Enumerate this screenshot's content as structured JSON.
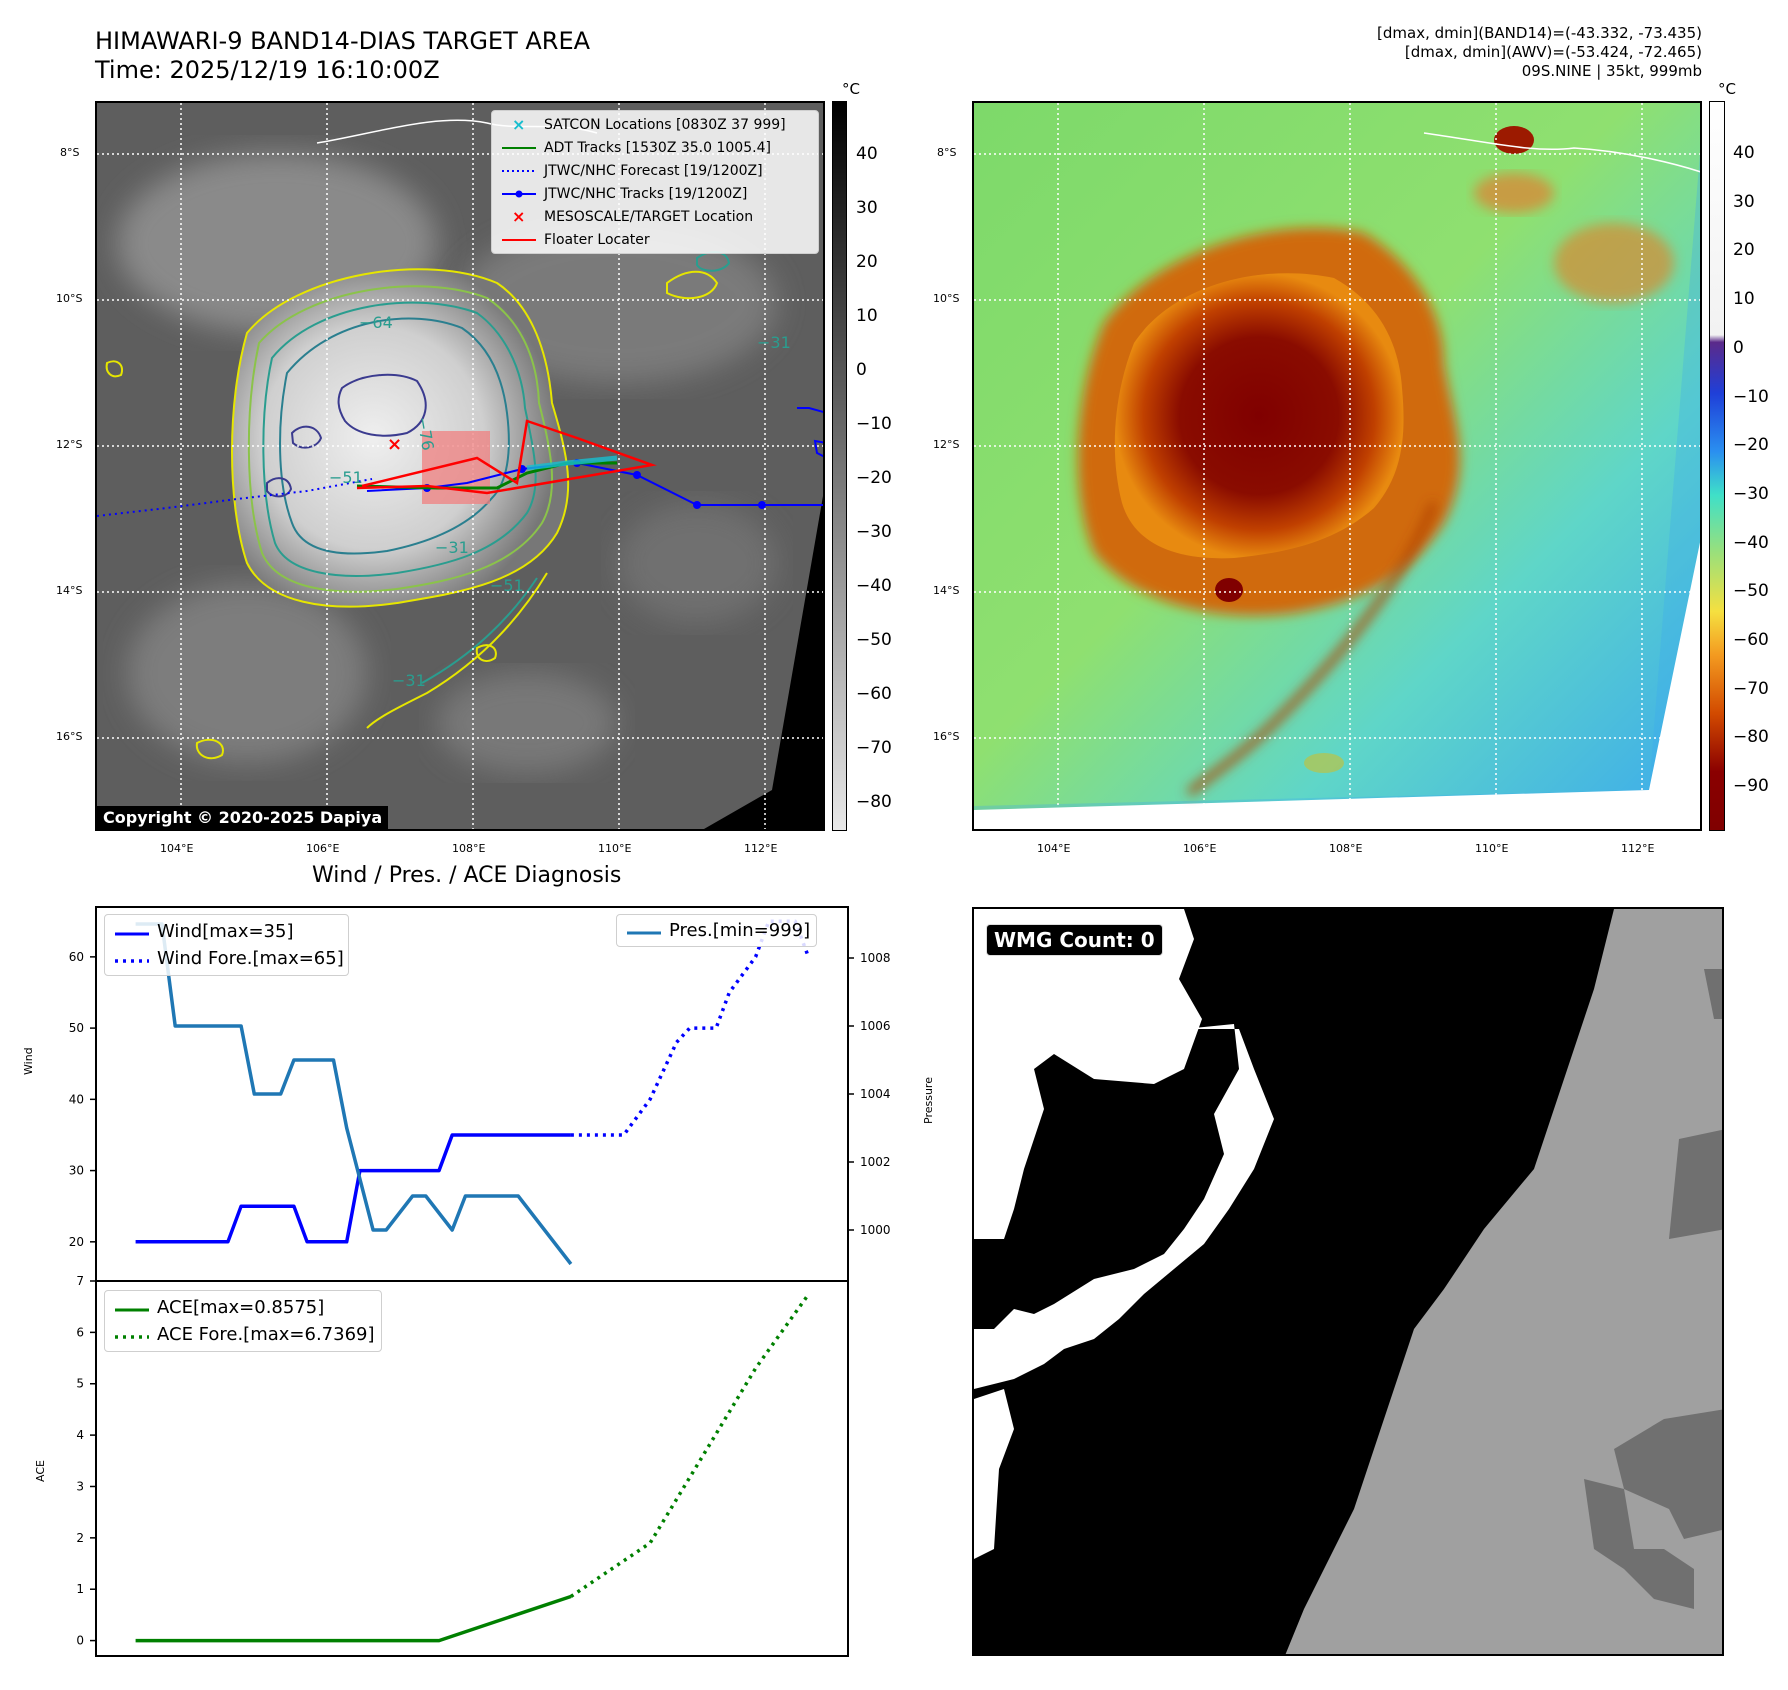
{
  "header": {
    "title_line1": "HIMAWARI-9 BAND14-DIAS TARGET AREA",
    "title_line2": "Time: 2025/12/19 16:10:00Z",
    "info_line1": "[dmax, dmin](BAND14)=(-43.332, -73.435)",
    "info_line2": "[dmax, dmin](AWV)=(-53.424, -72.465)",
    "info_line3": "09S.NINE | 35kt, 999mb"
  },
  "map_axes": {
    "lat_labels": [
      "8°S",
      "10°S",
      "12°S",
      "14°S",
      "16°S"
    ],
    "lon_labels": [
      "104°E",
      "106°E",
      "108°E",
      "110°E",
      "112°E"
    ]
  },
  "ir_panel": {
    "colorbar_unit": "°C",
    "colorbar_ticks": [
      "40",
      "30",
      "20",
      "10",
      "0",
      "−10",
      "−20",
      "−30",
      "−40",
      "−50",
      "−60",
      "−70",
      "−80"
    ],
    "contour_labels": [
      "−64",
      "−76",
      "−31",
      "−31",
      "−51",
      "−51",
      "−31"
    ],
    "copyright": "Copyright © 2020-2025 Dapiya",
    "legend": [
      {
        "label": "SATCON Locations [0830Z 37 999]",
        "symbol": "x-marker",
        "color": "#17becf"
      },
      {
        "label": "ADT Tracks [1530Z 35.0 1005.4]",
        "symbol": "line",
        "color": "#008000"
      },
      {
        "label": "JTWC/NHC Forecast [19/1200Z]",
        "symbol": "dotted-line",
        "color": "#0000ff"
      },
      {
        "label": "JTWC/NHC Tracks [19/1200Z]",
        "symbol": "line-dot",
        "color": "#0000ff"
      },
      {
        "label": "MESOSCALE/TARGET Location",
        "symbol": "x-marker",
        "color": "#ff0000"
      },
      {
        "label": "Floater Locater",
        "symbol": "line",
        "color": "#ff0000"
      }
    ]
  },
  "awv_panel": {
    "colorbar_unit": "°C",
    "colorbar_ticks": [
      "40",
      "30",
      "20",
      "10",
      "0",
      "−10",
      "−20",
      "−30",
      "−40",
      "−50",
      "−60",
      "−70",
      "−80",
      "−90"
    ]
  },
  "wmg_panel": {
    "badge": "WMG Count: 0"
  },
  "chart_data": [
    {
      "type": "line",
      "title": "Wind / Pres. / ACE Diagnosis",
      "ylabel": "Wind",
      "ylabel2": "Pressure",
      "ylim": [
        14.5,
        67
      ],
      "ylim2": [
        998.5,
        1009.5
      ],
      "yticks": [
        20,
        30,
        40,
        50,
        60
      ],
      "yticks2": [
        1000,
        1002,
        1004,
        1006,
        1008
      ],
      "legend_left": [
        "Wind[max=35]",
        "Wind Fore.[max=65]"
      ],
      "legend_right": [
        "Pres.[min=999]"
      ],
      "series": [
        {
          "name": "Wind",
          "axis": "left",
          "style": "solid",
          "color": "#0000ff",
          "x": [
            0,
            7,
            8,
            12,
            13,
            16,
            17,
            23,
            24,
            27,
            28,
            33
          ],
          "values": [
            20,
            20,
            25,
            25,
            20,
            20,
            30,
            30,
            35,
            35,
            35,
            35
          ]
        },
        {
          "name": "Wind Fore.",
          "axis": "left",
          "style": "dotted",
          "color": "#0000ff",
          "x": [
            33,
            37,
            39,
            41,
            42,
            44,
            45,
            47,
            48,
            50,
            51
          ],
          "values": [
            35,
            35,
            40,
            48,
            50,
            50,
            55,
            60,
            65,
            65,
            60
          ]
        },
        {
          "name": "Pres.",
          "axis": "right",
          "style": "solid",
          "color": "#1f77b4",
          "x": [
            0,
            2,
            3,
            8,
            9,
            11,
            12,
            15,
            16,
            18,
            19,
            21,
            22,
            24,
            25,
            29,
            33
          ],
          "values": [
            1009,
            1009,
            1006,
            1006,
            1004,
            1004,
            1005,
            1005,
            1003,
            1000,
            1000,
            1001,
            1001,
            1000,
            1001,
            1001,
            999
          ]
        }
      ]
    },
    {
      "type": "line",
      "ylabel": "ACE",
      "ylim": [
        -0.3,
        7
      ],
      "yticks": [
        0,
        1,
        2,
        3,
        4,
        5,
        6,
        7
      ],
      "legend": [
        "ACE[max=0.8575]",
        "ACE Fore.[max=6.7369]"
      ],
      "series": [
        {
          "name": "ACE",
          "style": "solid",
          "color": "#008000",
          "x": [
            0,
            23,
            33
          ],
          "values": [
            0,
            0,
            0.8575
          ]
        },
        {
          "name": "ACE Fore.",
          "style": "dotted",
          "color": "#008000",
          "x": [
            33,
            39,
            43,
            47,
            51
          ],
          "values": [
            0.8575,
            1.9,
            3.6,
            5.3,
            6.7369
          ]
        }
      ]
    }
  ]
}
